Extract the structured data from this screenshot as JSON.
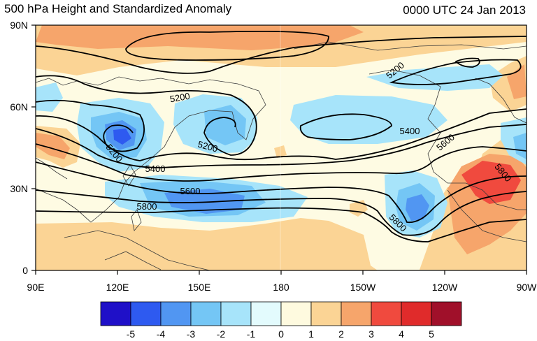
{
  "title_left": "500 hPa Height and Standardized Anomaly",
  "title_right": "0000 UTC 24 Jan 2013",
  "axes": {
    "lat_labels": [
      "90N",
      "60N",
      "30N",
      "0"
    ],
    "lon_labels": [
      "90E",
      "120E",
      "150E",
      "180",
      "150W",
      "120W",
      "90W"
    ]
  },
  "contour_labels": [
    "5200",
    "5200",
    "5200",
    "5200",
    "5400",
    "5400",
    "5600",
    "5600",
    "5800",
    "5800",
    "5800"
  ],
  "colorbar": {
    "labels": [
      "-5",
      "-4",
      "-3",
      "-2",
      "-1",
      "0",
      "1",
      "2",
      "3",
      "4",
      "5"
    ],
    "colors": [
      "#1f10c8",
      "#2e5af0",
      "#5196f2",
      "#74c6f5",
      "#a7e4fa",
      "#e3fbfd",
      "#fefadf",
      "#fbd495",
      "#f6a56b",
      "#f04a3e",
      "#e02b2b",
      "#a0102a"
    ]
  },
  "map_colors": {
    "ocean": "#fefbe3",
    "coast": "#3a3a3a",
    "contour": "#000000",
    "frame": "#000000"
  }
}
